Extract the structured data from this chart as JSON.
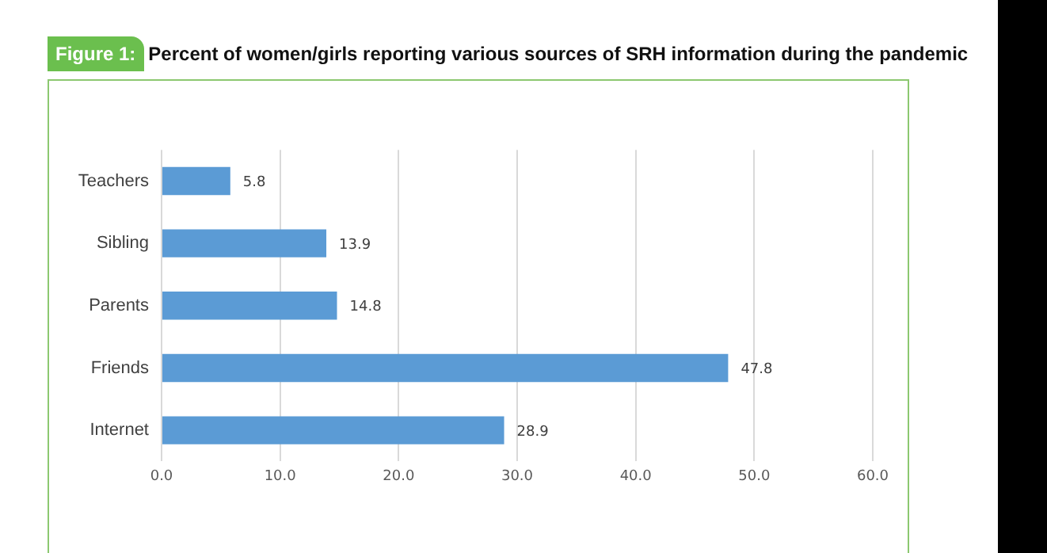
{
  "chart_data": {
    "type": "bar",
    "orientation": "horizontal",
    "title": "Percent of women/girls reporting various sources of SRH information during the pandemic",
    "annotations": [
      "Figure 1:"
    ],
    "categories": [
      "Teachers",
      "Sibling",
      "Parents",
      "Friends",
      "Internet"
    ],
    "values": [
      5.8,
      13.9,
      14.8,
      47.8,
      28.9
    ],
    "color": "#5b9bd5",
    "xlim": [
      0,
      60
    ],
    "xticks": [
      {
        "value": 0,
        "label": "0.0"
      },
      {
        "value": 10,
        "label": "10.0"
      },
      {
        "value": 20,
        "label": "20.0"
      },
      {
        "value": 30,
        "label": "30.0"
      },
      {
        "value": 40,
        "label": "40.0"
      },
      {
        "value": 50,
        "label": "50.0"
      },
      {
        "value": 60,
        "label": "60.0"
      }
    ],
    "grid": "x",
    "legend": false,
    "data_labels": true
  }
}
